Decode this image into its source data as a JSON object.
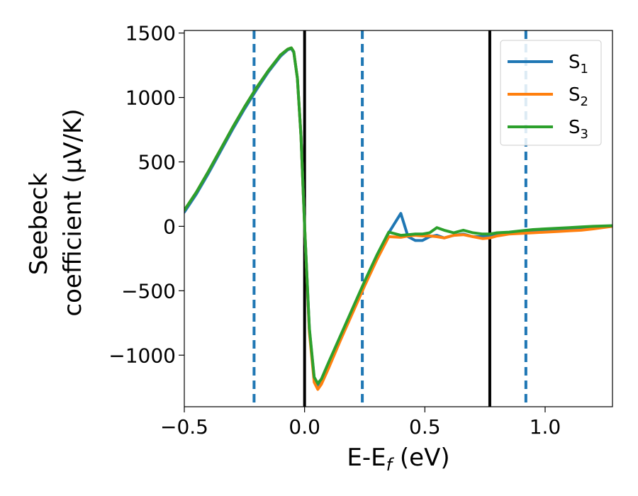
{
  "chart_data": {
    "type": "line",
    "xlabel": {
      "main": "E-E",
      "sub": "f",
      "tail": " (eV)"
    },
    "ylabel": {
      "line1": "Seebeck",
      "line2": "coefficient  (μV/K)"
    },
    "xlim": [
      -0.5,
      1.28
    ],
    "ylim": [
      -1400,
      1520
    ],
    "xticks": [
      -0.5,
      0.0,
      0.5,
      1.0
    ],
    "xtick_labels": [
      "−0.5",
      "0.0",
      "0.5",
      "1.0"
    ],
    "yticks": [
      -1000,
      -500,
      0,
      500,
      1000,
      1500
    ],
    "ytick_labels": [
      "−1000",
      "−500",
      "0",
      "500",
      "1000",
      "1500"
    ],
    "grid": false,
    "legend_position": "top-right",
    "vlines_solid": [
      0.0,
      0.77
    ],
    "vlines_dashed": [
      -0.21,
      0.24,
      0.92
    ],
    "colors": {
      "S1": "#1f77b4",
      "S2": "#ff7f0e",
      "S3": "#2ca02c",
      "solid": "#000000",
      "dashed": "#1f77b4"
    },
    "series": [
      {
        "name": "S1",
        "label_main": "S",
        "label_sub": "1",
        "x": [
          -0.5,
          -0.45,
          -0.4,
          -0.35,
          -0.3,
          -0.25,
          -0.2,
          -0.15,
          -0.1,
          -0.07,
          -0.055,
          -0.045,
          -0.03,
          -0.015,
          0.0,
          0.02,
          0.04,
          0.055,
          0.07,
          0.1,
          0.15,
          0.2,
          0.25,
          0.3,
          0.35,
          0.4,
          0.43,
          0.46,
          0.49,
          0.52,
          0.55,
          0.58,
          0.62,
          0.66,
          0.7,
          0.74,
          0.77,
          0.8,
          0.85,
          0.9,
          0.95,
          1.0,
          1.05,
          1.1,
          1.15,
          1.2,
          1.28
        ],
        "y": [
          110,
          250,
          410,
          580,
          750,
          910,
          1060,
          1200,
          1320,
          1370,
          1380,
          1350,
          1150,
          700,
          0,
          -800,
          -1180,
          -1235,
          -1190,
          -1060,
          -850,
          -640,
          -430,
          -230,
          -50,
          100,
          -80,
          -110,
          -110,
          -80,
          -70,
          -90,
          -70,
          -60,
          -80,
          -80,
          -80,
          -65,
          -55,
          -45,
          -35,
          -30,
          -25,
          -20,
          -15,
          -10,
          0
        ]
      },
      {
        "name": "S2",
        "label_main": "S",
        "label_sub": "2",
        "x": [
          -0.5,
          -0.45,
          -0.4,
          -0.35,
          -0.3,
          -0.25,
          -0.2,
          -0.15,
          -0.1,
          -0.07,
          -0.055,
          -0.045,
          -0.03,
          -0.015,
          0.0,
          0.02,
          0.04,
          0.055,
          0.07,
          0.1,
          0.15,
          0.2,
          0.25,
          0.3,
          0.35,
          0.4,
          0.43,
          0.46,
          0.49,
          0.52,
          0.55,
          0.58,
          0.62,
          0.66,
          0.7,
          0.74,
          0.77,
          0.8,
          0.85,
          0.9,
          0.95,
          1.0,
          1.05,
          1.1,
          1.15,
          1.2,
          1.28
        ],
        "y": [
          125,
          265,
          425,
          595,
          765,
          925,
          1075,
          1210,
          1330,
          1375,
          1385,
          1355,
          1150,
          700,
          0,
          -820,
          -1210,
          -1265,
          -1225,
          -1100,
          -880,
          -670,
          -460,
          -260,
          -80,
          -85,
          -75,
          -70,
          -75,
          -75,
          -80,
          -90,
          -70,
          -65,
          -80,
          -95,
          -90,
          -75,
          -60,
          -55,
          -50,
          -45,
          -40,
          -35,
          -30,
          -20,
          0
        ]
      },
      {
        "name": "S3",
        "label_main": "S",
        "label_sub": "3",
        "x": [
          -0.5,
          -0.45,
          -0.4,
          -0.35,
          -0.3,
          -0.25,
          -0.2,
          -0.15,
          -0.1,
          -0.07,
          -0.055,
          -0.045,
          -0.03,
          -0.015,
          0.0,
          0.02,
          0.04,
          0.055,
          0.07,
          0.1,
          0.15,
          0.2,
          0.25,
          0.3,
          0.35,
          0.4,
          0.43,
          0.46,
          0.49,
          0.52,
          0.55,
          0.58,
          0.62,
          0.66,
          0.7,
          0.74,
          0.77,
          0.8,
          0.85,
          0.9,
          0.95,
          1.0,
          1.05,
          1.1,
          1.15,
          1.2,
          1.28
        ],
        "y": [
          125,
          265,
          425,
          595,
          765,
          925,
          1075,
          1210,
          1330,
          1375,
          1385,
          1355,
          1150,
          700,
          0,
          -790,
          -1170,
          -1220,
          -1185,
          -1055,
          -845,
          -635,
          -425,
          -225,
          -45,
          -70,
          -65,
          -60,
          -60,
          -50,
          -10,
          -30,
          -50,
          -30,
          -50,
          -60,
          -60,
          -50,
          -45,
          -35,
          -25,
          -20,
          -15,
          -10,
          -5,
          0,
          5
        ]
      }
    ]
  }
}
